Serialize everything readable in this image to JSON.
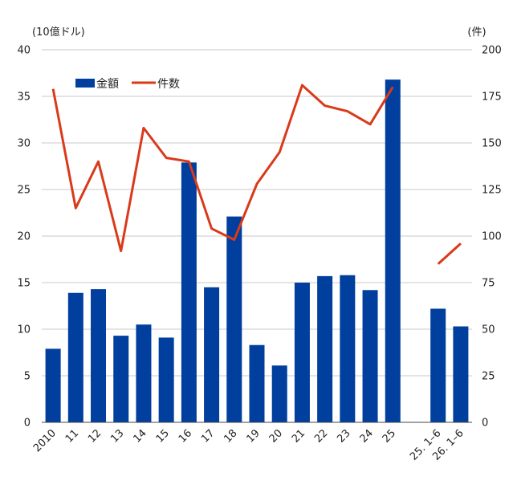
{
  "chart_data": {
    "type": "bar",
    "categories": [
      "2010",
      "11",
      "12",
      "13",
      "14",
      "15",
      "16",
      "17",
      "18",
      "19",
      "20",
      "21",
      "22",
      "23",
      "24",
      "25",
      "",
      "25. 1–6",
      "26. 1–6"
    ],
    "series": [
      {
        "name": "金額",
        "type": "bar",
        "axis": "left",
        "color": "#003f9e",
        "values": [
          7.9,
          13.9,
          14.3,
          9.3,
          10.5,
          9.1,
          27.9,
          14.5,
          22.1,
          8.3,
          6.1,
          15.0,
          15.7,
          15.8,
          14.2,
          36.8,
          null,
          12.2,
          10.3
        ]
      },
      {
        "name": "件数",
        "type": "line",
        "axis": "right",
        "color": "#d93a1a",
        "values": [
          179,
          115,
          140,
          92,
          158,
          142,
          140,
          104,
          98,
          128,
          145,
          181,
          170,
          167,
          160,
          180,
          null,
          85,
          96
        ]
      }
    ],
    "y_left": {
      "unit": "(10億ドル)",
      "min": 0,
      "max": 40,
      "ticks": [
        0,
        5,
        10,
        15,
        20,
        25,
        30,
        35,
        40
      ]
    },
    "y_right": {
      "unit": "(件)",
      "min": 0,
      "max": 200,
      "ticks": [
        0,
        25,
        50,
        75,
        100,
        125,
        150,
        175,
        200
      ]
    },
    "grid": true,
    "legend_position": "top-left"
  }
}
